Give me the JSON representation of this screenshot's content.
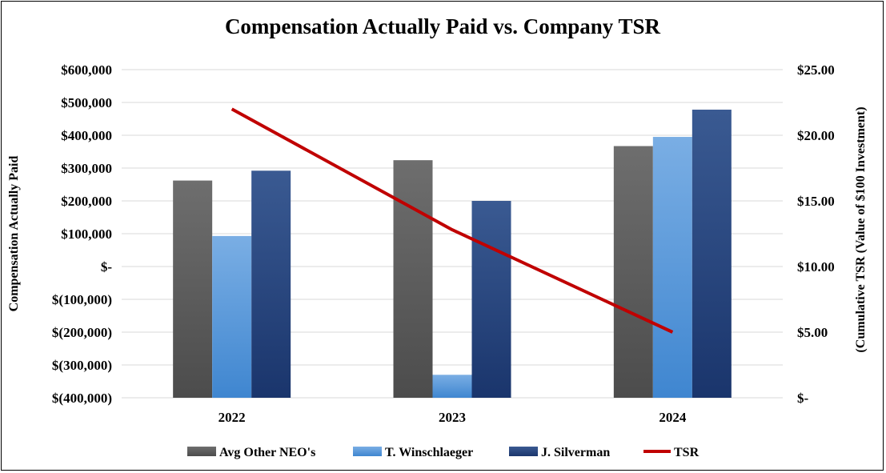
{
  "chart_data": {
    "type": "bar",
    "title": "Compensation Actually Paid vs. Company TSR",
    "categories": [
      "2022",
      "2023",
      "2024"
    ],
    "ylabel": "Compensation Actually Paid",
    "y2label": "(Cumulative TSR (Value of $100 Investment)",
    "ylim": [
      -400000,
      600000
    ],
    "y2lim": [
      0,
      25
    ],
    "yticks": [
      "$600,000",
      "$500,000",
      "$400,000",
      "$300,000",
      "$200,000",
      "$100,000",
      "$-",
      "$(100,000)",
      "$(200,000)",
      "$(300,000)",
      "$(400,000)"
    ],
    "y2ticks": [
      "$25.00",
      "$20.00",
      "$15.00",
      "$10.00",
      "$5.00",
      "$-"
    ],
    "grid": true,
    "legend_position": "bottom",
    "series": [
      {
        "name": "Avg Other NEO's",
        "type": "bar",
        "axis": "left",
        "color": "#5a5a5a",
        "values": [
          262000,
          324000,
          367000
        ]
      },
      {
        "name": "T. Winschlaeger",
        "type": "bar",
        "axis": "left",
        "color": "#4a90d8",
        "values": [
          93000,
          -330000,
          395000
        ]
      },
      {
        "name": "J. Silverman",
        "type": "bar",
        "axis": "left",
        "color": "#223f78",
        "values": [
          292000,
          200000,
          478000
        ]
      },
      {
        "name": "TSR",
        "type": "line",
        "axis": "right",
        "color": "#c00000",
        "values": [
          22.0,
          12.8,
          5.0
        ]
      }
    ]
  }
}
